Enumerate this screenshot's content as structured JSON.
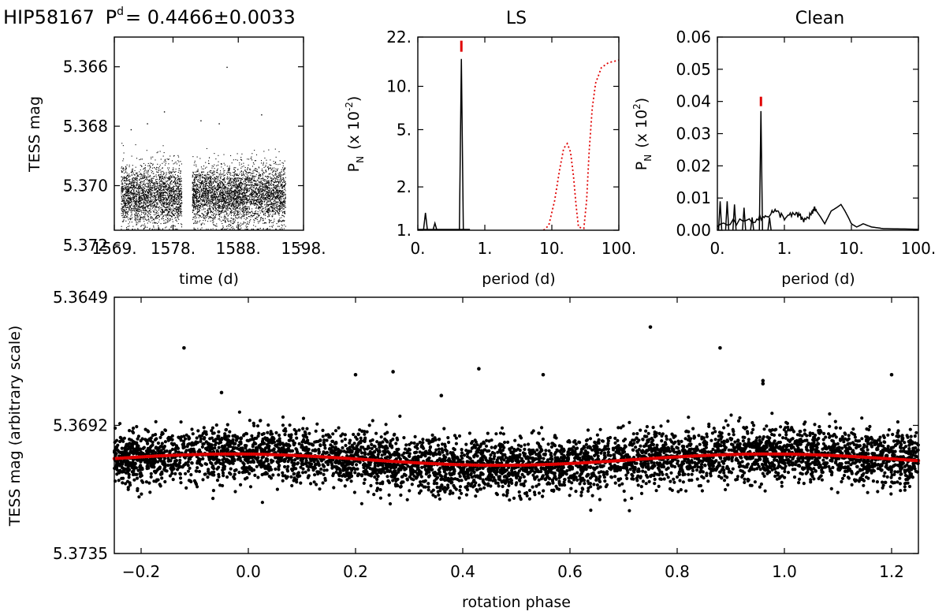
{
  "figure": {
    "title": "HIP58167",
    "period_symbol": "P",
    "period_superscript": "d",
    "period_value": "= 0.4466±0.0033"
  },
  "chart_data": [
    {
      "id": "lightcurve",
      "type": "scatter",
      "xlabel": "time (d)",
      "ylabel": "TESS mag",
      "xlim": [
        1569,
        1598
      ],
      "ylim": [
        5.3715,
        5.365
      ],
      "x_ticks": [
        1569,
        1578,
        1588,
        1598
      ],
      "x_tick_labels": [
        "1569.",
        "1578.",
        "1588.",
        "1598."
      ],
      "y_ticks": [
        5.366,
        5.368,
        5.37,
        5.372
      ],
      "y_tick_labels": [
        "5.366",
        "5.368",
        "5.370",
        "5.372"
      ],
      "segments": [
        [
          1570.0,
          1579.3
        ],
        [
          1580.9,
          1595.2
        ]
      ],
      "mean_mag": 5.3703,
      "scatter_mag": 0.0005,
      "outliers": [
        [
          1586.2,
          5.366
        ],
        [
          1576.6,
          5.3675
        ],
        [
          1582.2,
          5.3678
        ],
        [
          1585.0,
          5.3679
        ],
        [
          1591.5,
          5.3676
        ],
        [
          1574.0,
          5.3679
        ],
        [
          1571.5,
          5.3681
        ]
      ]
    },
    {
      "id": "ls",
      "type": "line",
      "title": "LS",
      "xlabel": "period (d)",
      "ylabel": "P",
      "ylabel_sub": "N",
      "ylabel_suffix": "(x 10",
      "ylabel_exp": "-2",
      "ylabel_close": ")",
      "x_scale": "log",
      "y_scale": "log",
      "xlim": [
        0.1,
        100
      ],
      "ylim": [
        1,
        22
      ],
      "x_ticks": [
        0.1,
        1,
        10,
        100
      ],
      "x_tick_labels": [
        "0.",
        "1.",
        "10.",
        "100."
      ],
      "y_ticks": [
        1,
        2,
        5,
        10,
        22
      ],
      "y_tick_labels": [
        "1.",
        "2.",
        "5.",
        "10.",
        "22."
      ],
      "peaks": [
        [
          0.13,
          1.32
        ],
        [
          0.18,
          1.12
        ],
        [
          0.4466,
          15.5
        ]
      ],
      "window_curve": [
        [
          7.5,
          1.0
        ],
        [
          9,
          1.08
        ],
        [
          11,
          1.6
        ],
        [
          13,
          2.6
        ],
        [
          15,
          3.7
        ],
        [
          17,
          4.0
        ],
        [
          19,
          3.5
        ],
        [
          21,
          2.4
        ],
        [
          23,
          1.5
        ],
        [
          25,
          1.05
        ],
        [
          30,
          1.03
        ],
        [
          33,
          1.6
        ],
        [
          36,
          3.5
        ],
        [
          40,
          7
        ],
        [
          45,
          10.5
        ],
        [
          55,
          13.5
        ],
        [
          70,
          14.6
        ],
        [
          100,
          15.2
        ]
      ],
      "marker_period": 0.4466,
      "marker_value": 19
    },
    {
      "id": "clean",
      "type": "line",
      "title": "Clean",
      "xlabel": "period (d)",
      "ylabel": "P",
      "ylabel_sub": "N",
      "ylabel_suffix": "(x 10",
      "ylabel_exp": "2",
      "ylabel_close": ")",
      "x_scale": "log",
      "xlim": [
        0.1,
        100
      ],
      "ylim": [
        0,
        0.06
      ],
      "x_ticks": [
        0.1,
        1,
        10,
        100
      ],
      "x_tick_labels": [
        "0.",
        "1.",
        "10.",
        "100."
      ],
      "y_ticks": [
        0,
        0.01,
        0.02,
        0.03,
        0.04,
        0.05,
        0.06
      ],
      "y_tick_labels": [
        "0.00",
        "0.01",
        "0.02",
        "0.03",
        "0.04",
        "0.05",
        "0.06"
      ],
      "spikes": [
        [
          0.11,
          0.009
        ],
        [
          0.14,
          0.009
        ],
        [
          0.18,
          0.008
        ],
        [
          0.25,
          0.007
        ],
        [
          0.4466,
          0.037
        ],
        [
          0.33,
          0.004
        ],
        [
          0.6,
          0.004
        ]
      ],
      "continuum": [
        [
          0.1,
          0.001
        ],
        [
          0.3,
          0.002
        ],
        [
          0.5,
          0.003
        ],
        [
          0.7,
          0.005
        ],
        [
          1.0,
          0.003
        ],
        [
          1.5,
          0.004
        ],
        [
          2,
          0.002
        ],
        [
          2.5,
          0.004
        ],
        [
          3,
          0.006
        ],
        [
          3.5,
          0.004
        ],
        [
          4,
          0.002
        ],
        [
          5,
          0.006
        ],
        [
          6,
          0.007
        ],
        [
          7,
          0.008
        ],
        [
          8,
          0.006
        ],
        [
          9,
          0.004
        ],
        [
          10,
          0.002
        ],
        [
          12,
          0.001
        ],
        [
          15,
          0.002
        ],
        [
          20,
          0.001
        ],
        [
          30,
          0.0005
        ],
        [
          100,
          0.0003
        ]
      ],
      "marker_period": 0.4466,
      "marker_value": 0.04
    },
    {
      "id": "phased",
      "type": "scatter",
      "xlabel": "rotation phase",
      "ylabel": "TESS mag (arbitrary scale)",
      "xlim": [
        -0.25,
        1.25
      ],
      "ylim": [
        5.3735,
        5.3649
      ],
      "x_ticks": [
        -0.2,
        0.0,
        0.2,
        0.4,
        0.6,
        0.8,
        1.0,
        1.2
      ],
      "x_tick_labels": [
        "−0.2",
        "0.0",
        "0.2",
        "0.4",
        "0.6",
        "0.8",
        "1.0",
        "1.2"
      ],
      "y_ticks": [
        5.3649,
        5.3692,
        5.3735
      ],
      "y_tick_labels": [
        "5.3649",
        "5.3692",
        "5.3735"
      ],
      "mean_mag": 5.37035,
      "amplitude": 0.00019,
      "max_phase": -0.03,
      "scatter_mag": 0.00045,
      "outliers": [
        [
          0.75,
          5.3659
        ],
        [
          -0.12,
          5.3666
        ],
        [
          0.88,
          5.3666
        ],
        [
          0.43,
          5.3673
        ],
        [
          0.2,
          5.3675
        ],
        [
          0.27,
          5.3674
        ],
        [
          0.55,
          5.3675
        ],
        [
          1.2,
          5.3675
        ],
        [
          0.96,
          5.3677
        ],
        [
          0.96,
          5.3678
        ],
        [
          0.36,
          5.3682
        ],
        [
          -0.05,
          5.3681
        ]
      ]
    }
  ]
}
